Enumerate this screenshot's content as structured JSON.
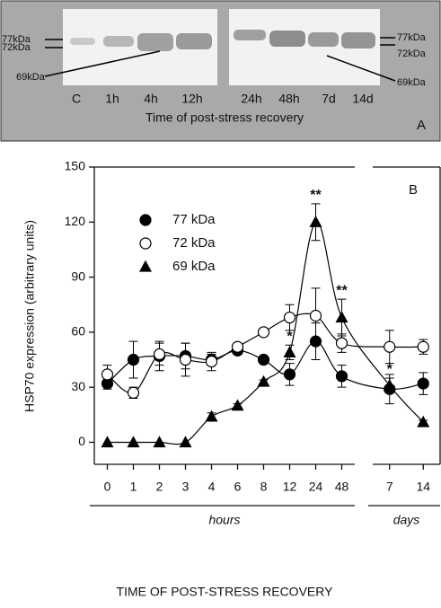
{
  "blot": {
    "left_labels": [
      "77kDa",
      "72kDa",
      "69kDa"
    ],
    "right_labels": [
      "77kDa",
      "72kDa",
      "69kDa"
    ],
    "lanes": [
      "C",
      "1h",
      "4h",
      "12h",
      "24h",
      "48h",
      "7d",
      "14d"
    ],
    "caption": "Time of post-stress recovery",
    "panel": "A"
  },
  "chart_data": {
    "type": "line",
    "panel": "B",
    "y_label": "HSP70 expression (arbitrary units)",
    "x_label": "TIME OF POST-STRESS RECOVERY",
    "groups": [
      {
        "label": "hours",
        "categories": [
          "0",
          "1",
          "2",
          "3",
          "4",
          "6",
          "8",
          "12",
          "24",
          "48"
        ]
      },
      {
        "label": "days",
        "categories": [
          "7",
          "14"
        ]
      }
    ],
    "ylim": [
      -12,
      150
    ],
    "yticks": [
      0,
      30,
      60,
      90,
      120,
      150
    ],
    "series": [
      {
        "name": "77 kDa",
        "color": "#000000",
        "fill": "#000000",
        "marker": "circle",
        "values": [
          32,
          45,
          47,
          47,
          45,
          50,
          45,
          37,
          55,
          36,
          29,
          32
        ],
        "errors": [
          3,
          10,
          8,
          7,
          3,
          2,
          1,
          6,
          10,
          6,
          8,
          6
        ]
      },
      {
        "name": "72 kDa",
        "color": "#000000",
        "fill": "#ffffff",
        "marker": "circle",
        "values": [
          37,
          27,
          48,
          45,
          44,
          52,
          60,
          68,
          69,
          54,
          52,
          52
        ],
        "errors": [
          5,
          3,
          6,
          9,
          5,
          2,
          2,
          7,
          15,
          5,
          9,
          4
        ]
      },
      {
        "name": "69 kDa",
        "color": "#000000",
        "fill": "#000000",
        "marker": "triangle",
        "values": [
          0,
          0,
          0,
          0,
          14,
          20,
          33,
          49,
          120,
          68,
          31,
          11
        ],
        "errors": [
          0,
          0,
          0,
          0,
          2,
          1,
          1,
          4,
          10,
          10,
          4,
          1
        ]
      }
    ],
    "annotations": [
      {
        "text": "*",
        "x": "12"
      },
      {
        "text": "**",
        "x": "24"
      },
      {
        "text": "**",
        "x": "48"
      },
      {
        "text": "*",
        "x": "7"
      }
    ]
  }
}
